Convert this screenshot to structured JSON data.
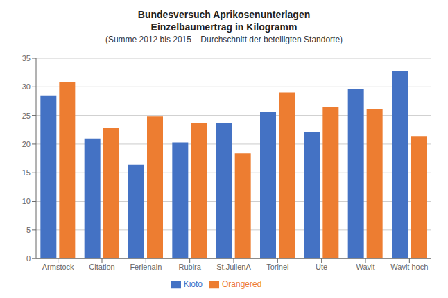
{
  "chart_data": {
    "type": "bar",
    "title": "Bundesversuch Aprikosenunterlagen\nEinzelbaumertrag in Kilogramm",
    "subtitle": "(Summe 2012 bis 2015 – Durchschnitt der beteiligten Standorte)",
    "categories": [
      "Armstock",
      "Citation",
      "Ferlenain",
      "Rubira",
      "St.JulienA",
      "Torinel",
      "Ute",
      "Wavit",
      "Wavit hoch"
    ],
    "series": [
      {
        "name": "Kioto",
        "color": "#4472C4",
        "values": [
          28.5,
          21.0,
          16.4,
          20.3,
          23.7,
          25.6,
          22.1,
          29.6,
          32.8
        ]
      },
      {
        "name": "Orangered",
        "color": "#ED7D31",
        "values": [
          30.8,
          22.9,
          24.8,
          23.7,
          18.4,
          29.0,
          26.4,
          26.1,
          21.4
        ]
      }
    ],
    "ylim": [
      0,
      35
    ],
    "yticks": [
      0,
      5,
      10,
      15,
      20,
      25,
      30,
      35
    ],
    "grid": true,
    "legend": "bottom"
  }
}
